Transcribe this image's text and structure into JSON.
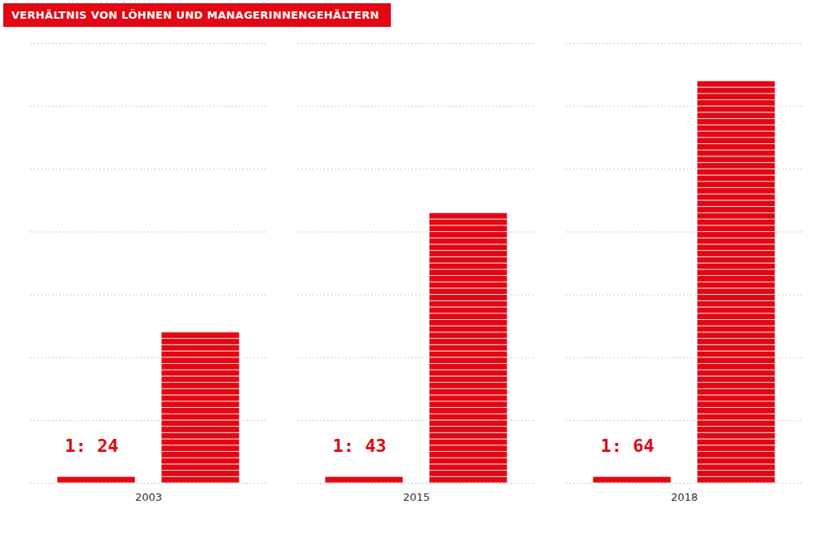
{
  "chart_data": {
    "type": "bar",
    "title": "VERHÄLTNIS VON LÖHNEN UND MANAGERINNENGEHÄLTERN",
    "categories": [
      "2003",
      "2015",
      "2018"
    ],
    "series": [
      {
        "color": "#e30613",
        "values": [
          1,
          1,
          1
        ]
      },
      {
        "color": "#e30613",
        "values": [
          24,
          43,
          64
        ],
        "value_labels": [
          "1: 24",
          "1: 43",
          "1: 64"
        ]
      }
    ],
    "ylim": [
      0,
      70
    ],
    "yticks": [
      0,
      10,
      20,
      30,
      40,
      50,
      60,
      70
    ],
    "grid": true,
    "tick_labels": "x",
    "data_labels": true
  }
}
